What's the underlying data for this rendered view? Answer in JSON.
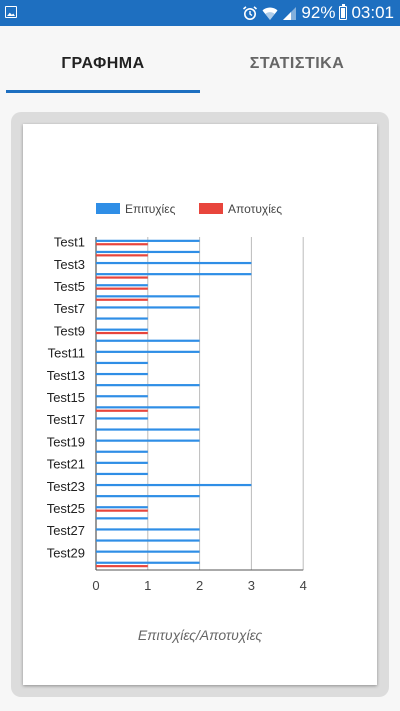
{
  "status_bar": {
    "battery_percent": "92%",
    "time": "03:01",
    "icons": [
      "gallery-icon",
      "alarm-icon",
      "wifi-icon",
      "signal-icon",
      "battery-icon"
    ]
  },
  "tabs": [
    {
      "label": "ΓΡΑΦΗΜΑ",
      "active": true
    },
    {
      "label": "ΣΤΑΤΙΣΤΙΚΑ",
      "active": false
    }
  ],
  "colors": {
    "accent": "#1e6fc0",
    "success": "#2f8ee6",
    "failure": "#e8453c"
  },
  "chart_data": {
    "type": "bar",
    "orientation": "horizontal",
    "categories": [
      "Test1",
      "Test2",
      "Test3",
      "Test4",
      "Test5",
      "Test6",
      "Test7",
      "Test8",
      "Test9",
      "Test10",
      "Test11",
      "Test12",
      "Test13",
      "Test14",
      "Test15",
      "Test16",
      "Test17",
      "Test18",
      "Test19",
      "Test20",
      "Test21",
      "Test22",
      "Test23",
      "Test24",
      "Test25",
      "Test26",
      "Test27",
      "Test28",
      "Test29",
      "Test30"
    ],
    "tick_labels_shown": [
      "Test1",
      "Test3",
      "Test5",
      "Test7",
      "Test9",
      "Test11",
      "Test13",
      "Test15",
      "Test17",
      "Test19",
      "Test21",
      "Test23",
      "Test25",
      "Test27",
      "Test29"
    ],
    "series": [
      {
        "name": "Επιτυχίες",
        "color": "#2f8ee6",
        "values": [
          2,
          2,
          3,
          3,
          1,
          2,
          2,
          1,
          1,
          2,
          2,
          1,
          1,
          2,
          1,
          2,
          1,
          2,
          2,
          1,
          1,
          1,
          3,
          2,
          1,
          1,
          2,
          2,
          2,
          2
        ]
      },
      {
        "name": "Αποτυχίες",
        "color": "#e8453c",
        "values": [
          1,
          1,
          0,
          1,
          1,
          1,
          0,
          0,
          1,
          0,
          0,
          0,
          0,
          0,
          0,
          1,
          0,
          0,
          0,
          0,
          0,
          0,
          0,
          0,
          1,
          0,
          0,
          0,
          0,
          1
        ]
      }
    ],
    "x_ticks": [
      0,
      1,
      2,
      3,
      4
    ],
    "xlim": [
      0,
      4
    ],
    "xlabel": "Επιτυχίες/Αποτυχίες",
    "legend_position": "top",
    "grid": "vertical"
  }
}
